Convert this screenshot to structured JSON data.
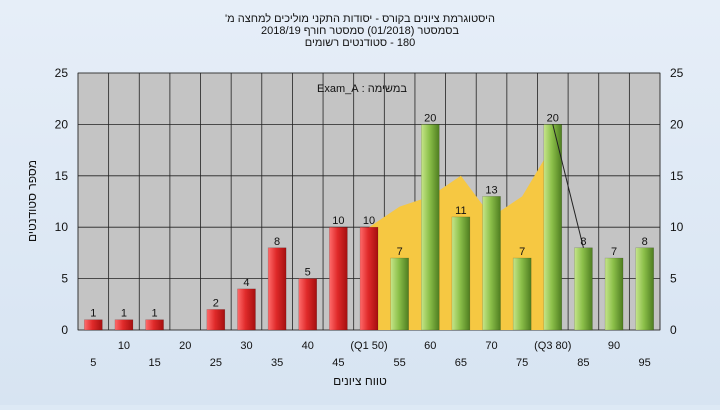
{
  "header": {
    "line1": "היסטוגרמת ציונים בקורס - יסודות התקני מוליכים למחצה מ'",
    "line2": "בסמסטר (01/2018) סמסטר חורף 2018/19",
    "line3": "180 - סטודנטים רשומים"
  },
  "chart_data": {
    "type": "bar",
    "title": "",
    "exam_label": "במשימה : Exam_A",
    "xlabel": "טווח ציונים",
    "ylabel": "מספר סטודנטים",
    "ylim": [
      0,
      25
    ],
    "y_ticks": [
      0,
      5,
      10,
      15,
      20,
      25
    ],
    "grid": true,
    "categories": [
      "5",
      "10",
      "15",
      "20",
      "25",
      "30",
      "35",
      "40",
      "45",
      "(Q1 50)",
      "55",
      "60",
      "65",
      "70",
      "75",
      "(Q3 80)",
      "85",
      "90",
      "95"
    ],
    "values": [
      1,
      1,
      1,
      0,
      2,
      4,
      8,
      5,
      10,
      10,
      7,
      20,
      11,
      13,
      7,
      20,
      8,
      7,
      8
    ],
    "bar_groups": [
      {
        "group": "below",
        "color": "#d92b2b",
        "indices": [
          0,
          1,
          2,
          3,
          4,
          5,
          6,
          7,
          8,
          9
        ]
      },
      {
        "group": "above",
        "color": "#8cc04a",
        "indices": [
          10,
          11,
          12,
          13,
          14,
          15,
          16,
          17,
          18
        ]
      }
    ],
    "area": {
      "color": "#f6c842",
      "x_from": "(Q1 50)",
      "x_to": "(Q3 80)",
      "points": [
        [
          "(Q1 50)",
          10
        ],
        [
          "55",
          12
        ],
        [
          "60",
          13
        ],
        [
          "65",
          15
        ],
        [
          "70",
          11
        ],
        [
          "75",
          13
        ],
        [
          "(Q3 80)",
          18
        ]
      ]
    },
    "overlay_line": {
      "color": "#222222",
      "points": [
        [
          "(Q3 80)",
          20
        ],
        [
          "85",
          8
        ]
      ]
    }
  }
}
